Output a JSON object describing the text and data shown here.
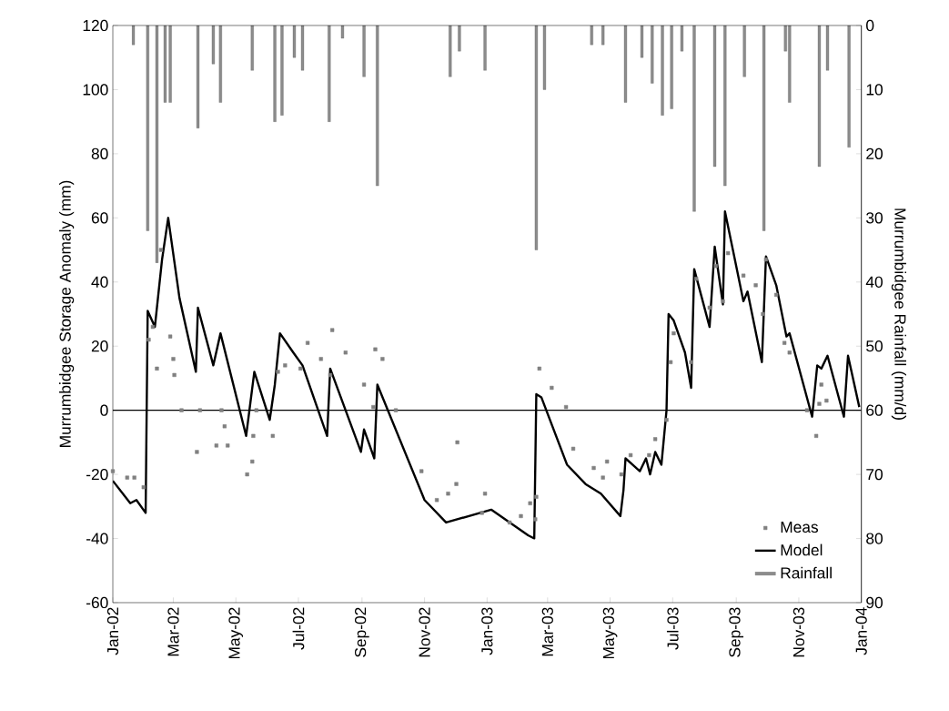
{
  "chart_data": {
    "type": "line",
    "ylabel": "Murrumbidgee Storage Anomaly (mm)",
    "y2label": "Murrumbidgee Rainfall (mm/d)",
    "xlim": [
      "2002-01-01",
      "2004-01-01"
    ],
    "xticks": [
      {
        "value": "2002-01-01",
        "label": "Jan-02"
      },
      {
        "value": "2002-03-01",
        "label": "Mar-02"
      },
      {
        "value": "2002-05-01",
        "label": "May-02"
      },
      {
        "value": "2002-07-01",
        "label": "Jul-02"
      },
      {
        "value": "2002-09-01",
        "label": "Sep-02"
      },
      {
        "value": "2002-11-01",
        "label": "Nov-02"
      },
      {
        "value": "2003-01-01",
        "label": "Jan-03"
      },
      {
        "value": "2003-03-01",
        "label": "Mar-03"
      },
      {
        "value": "2003-05-01",
        "label": "May-03"
      },
      {
        "value": "2003-07-01",
        "label": "Jul-03"
      },
      {
        "value": "2003-09-01",
        "label": "Sep-03"
      },
      {
        "value": "2003-11-01",
        "label": "Nov-03"
      },
      {
        "value": "2004-01-01",
        "label": "Jan-04"
      }
    ],
    "ylim": [
      -60,
      120
    ],
    "yticks": [
      -60,
      -40,
      -20,
      0,
      20,
      40,
      60,
      80,
      100,
      120
    ],
    "y2lim": [
      90,
      0
    ],
    "y2ticks": [
      0,
      10,
      20,
      30,
      40,
      50,
      60,
      70,
      80,
      90
    ],
    "legend": "bottom right",
    "ref_lines": [
      {
        "axis": "y",
        "value": 0,
        "color": "#000000"
      }
    ],
    "series": [
      {
        "name": "Meas",
        "type": "scatter",
        "marker": "square",
        "color": "#808080",
        "x": [
          "2002-01-01",
          "2002-01-15",
          "2002-01-22",
          "2002-01-31",
          "2002-02-05",
          "2002-02-09",
          "2002-02-13",
          "2002-02-17",
          "2002-02-26",
          "2002-03-01",
          "2002-03-02",
          "2002-03-09",
          "2002-03-24",
          "2002-03-27",
          "2002-04-12",
          "2002-04-17",
          "2002-04-20",
          "2002-04-23",
          "2002-05-12",
          "2002-05-17",
          "2002-05-18",
          "2002-05-21",
          "2002-06-06",
          "2002-06-11",
          "2002-06-18",
          "2002-07-03",
          "2002-07-10",
          "2002-07-23",
          "2002-08-01",
          "2002-08-03",
          "2002-08-16",
          "2002-09-03",
          "2002-09-12",
          "2002-09-14",
          "2002-09-21",
          "2002-10-04",
          "2002-10-29",
          "2002-11-13",
          "2002-11-24",
          "2002-12-02",
          "2002-12-03",
          "2002-12-27",
          "2002-12-30",
          "2003-01-23",
          "2003-02-03",
          "2003-02-12",
          "2003-02-17",
          "2003-02-18",
          "2003-02-21",
          "2003-03-05",
          "2003-03-19",
          "2003-03-26",
          "2003-04-15",
          "2003-04-24",
          "2003-04-28",
          "2003-05-12",
          "2003-05-21",
          "2003-06-08",
          "2003-06-14",
          "2003-06-25",
          "2003-06-29",
          "2003-07-02",
          "2003-07-19",
          "2003-07-24",
          "2003-08-06",
          "2003-08-12",
          "2003-08-19",
          "2003-08-24",
          "2003-09-08",
          "2003-09-20",
          "2003-09-27",
          "2003-09-30",
          "2003-10-10",
          "2003-10-18",
          "2003-10-23",
          "2003-11-09",
          "2003-11-18",
          "2003-11-21",
          "2003-11-23",
          "2003-11-28"
        ],
        "values": [
          -19,
          -21,
          -21,
          -24,
          22,
          26,
          13,
          50,
          23,
          16,
          11,
          0,
          -13,
          0,
          -11,
          0,
          -5,
          -11,
          -20,
          -16,
          -8,
          0,
          -8,
          12,
          14,
          13,
          21,
          16,
          11,
          25,
          18,
          8,
          1,
          19,
          16,
          0,
          -19,
          -28,
          -26,
          -23,
          -10,
          -32,
          -26,
          -35,
          -33,
          -29,
          -34,
          -27,
          13,
          7,
          1,
          -12,
          -18,
          -21,
          -16,
          -20,
          -14,
          -14,
          -9,
          -3,
          15,
          24,
          15,
          41,
          32,
          45,
          34,
          49,
          42,
          39,
          30,
          47,
          36,
          21,
          18,
          0,
          -8,
          2,
          8,
          3
        ]
      },
      {
        "name": "Model",
        "color": "#000000",
        "x": [
          "2002-01-01",
          "2002-01-18",
          "2002-01-24",
          "2002-02-02",
          "2002-02-04",
          "2002-02-11",
          "2002-02-18",
          "2002-02-24",
          "2002-03-07",
          "2002-03-23",
          "2002-03-25",
          "2002-04-09",
          "2002-04-16",
          "2002-05-11",
          "2002-05-19",
          "2002-06-03",
          "2002-06-08",
          "2002-06-13",
          "2002-06-26",
          "2002-07-05",
          "2002-07-29",
          "2002-08-01",
          "2002-08-31",
          "2002-09-03",
          "2002-09-13",
          "2002-09-16",
          "2002-11-01",
          "2002-11-22",
          "2003-01-05",
          "2003-02-10",
          "2003-02-16",
          "2003-02-18",
          "2003-02-23",
          "2003-03-20",
          "2003-04-07",
          "2003-04-22",
          "2003-05-11",
          "2003-05-14",
          "2003-05-16",
          "2003-05-30",
          "2003-06-05",
          "2003-06-09",
          "2003-06-14",
          "2003-06-20",
          "2003-06-25",
          "2003-06-27",
          "2003-07-02",
          "2003-07-13",
          "2003-07-19",
          "2003-07-22",
          "2003-08-06",
          "2003-08-11",
          "2003-08-19",
          "2003-08-21",
          "2003-08-30",
          "2003-09-08",
          "2003-09-12",
          "2003-09-26",
          "2003-09-30",
          "2003-10-10",
          "2003-10-20",
          "2003-10-23",
          "2003-11-14",
          "2003-11-19",
          "2003-11-23",
          "2003-11-29",
          "2003-12-15",
          "2003-12-19",
          "2003-12-30"
        ],
        "values": [
          -22,
          -29,
          -28,
          -32,
          31,
          26,
          47,
          60,
          35,
          12,
          32,
          14,
          24,
          -8,
          12,
          -3,
          8,
          24,
          18,
          14,
          -8,
          13,
          -13,
          -6,
          -15,
          8,
          -28,
          -35,
          -31,
          -39,
          -40,
          5,
          4,
          -17,
          -23,
          -26,
          -33,
          -25,
          -15,
          -19,
          -15,
          -20,
          -13,
          -17,
          0,
          30,
          28,
          18,
          7,
          44,
          26,
          51,
          33,
          62,
          48,
          34,
          37,
          15,
          48,
          39,
          23,
          24,
          -2,
          14,
          13,
          17,
          -2,
          17,
          1
        ]
      },
      {
        "name": "Rainfall",
        "type": "bar",
        "axis": "y2",
        "color": "#8c8c8c",
        "x": [
          "2002-01-21",
          "2002-02-04",
          "2002-02-13",
          "2002-02-21",
          "2002-02-26",
          "2002-03-25",
          "2002-04-09",
          "2002-04-16",
          "2002-05-17",
          "2002-06-08",
          "2002-06-15",
          "2002-06-27",
          "2002-07-05",
          "2002-07-31",
          "2002-08-13",
          "2002-09-03",
          "2002-09-16",
          "2002-11-26",
          "2002-12-05",
          "2002-12-30",
          "2003-02-18",
          "2003-02-26",
          "2003-04-13",
          "2003-04-24",
          "2003-05-16",
          "2003-06-01",
          "2003-06-11",
          "2003-06-21",
          "2003-06-30",
          "2003-07-10",
          "2003-07-22",
          "2003-08-11",
          "2003-08-21",
          "2003-09-09",
          "2003-09-28",
          "2003-10-19",
          "2003-10-23",
          "2003-11-21",
          "2003-11-29",
          "2003-12-20"
        ],
        "values": [
          3,
          32,
          37,
          12,
          12,
          16,
          6,
          12,
          7,
          15,
          14,
          5,
          7,
          15,
          2,
          8,
          25,
          8,
          4,
          7,
          35,
          10,
          3,
          3,
          12,
          5,
          9,
          14,
          13,
          4,
          29,
          22,
          25,
          8,
          32,
          4,
          12,
          22,
          7,
          19
        ]
      }
    ]
  }
}
